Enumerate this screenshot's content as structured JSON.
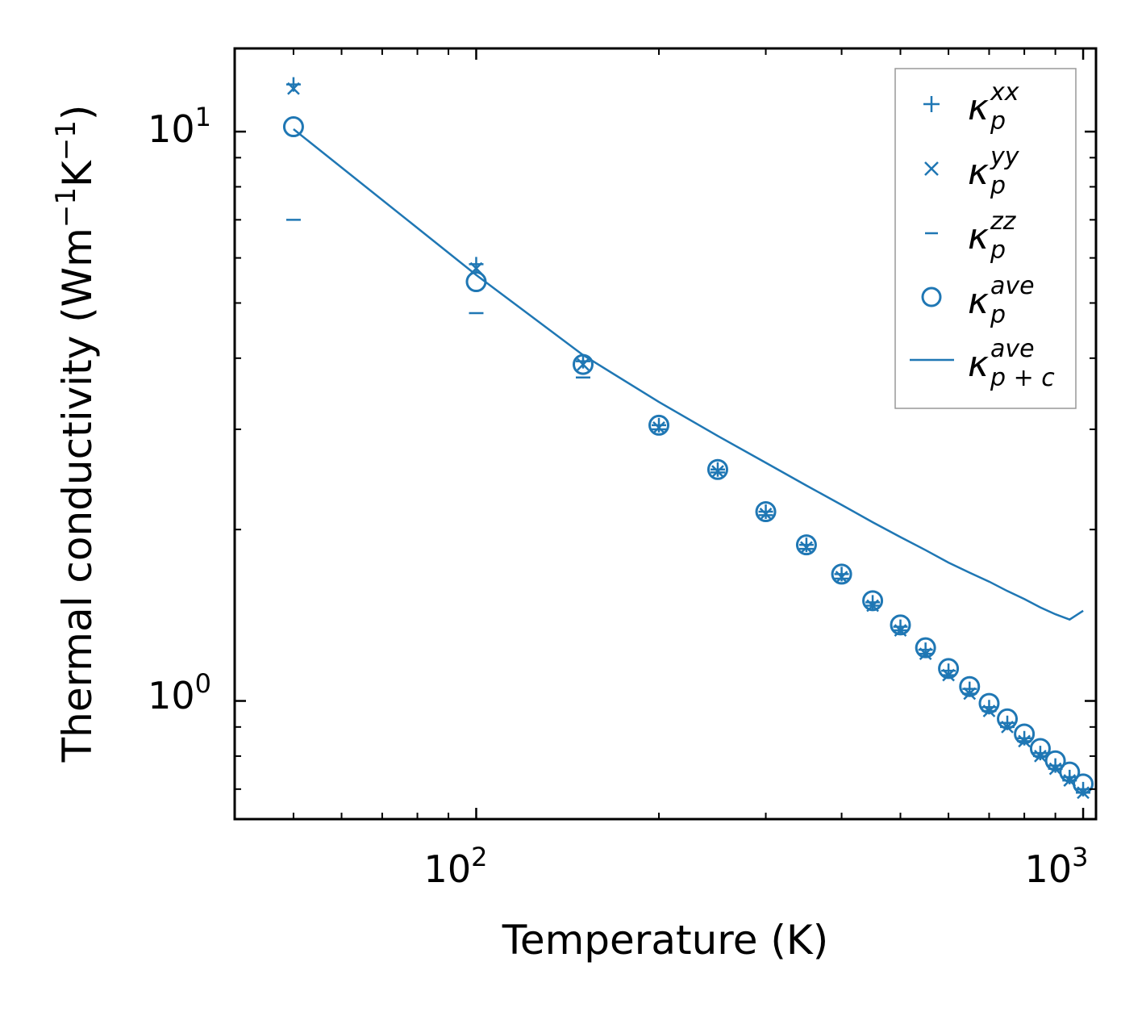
{
  "chart_data": {
    "type": "scatter",
    "xscale": "log",
    "yscale": "log",
    "xlabel": "Temperature (K)",
    "ylabel_main": "Thermal conductivity (Wm",
    "ylabel_sup1": "−1",
    "ylabel_mid": "K",
    "ylabel_sup2": "−1",
    "ylabel_end": ")",
    "xlim": [
      40,
      1050
    ],
    "ylim": [
      0.62,
      14
    ],
    "xticks": [
      {
        "value": 100,
        "base": "10",
        "exp": "2"
      },
      {
        "value": 1000,
        "base": "10",
        "exp": "3"
      }
    ],
    "yticks": [
      {
        "value": 1,
        "base": "10",
        "exp": "0"
      },
      {
        "value": 10,
        "base": "10",
        "exp": "1"
      }
    ],
    "series": [
      {
        "name": "kappa_p_xx",
        "marker": "plus",
        "legend": {
          "base": "κ",
          "sup": "xx",
          "sub": "p"
        },
        "x": [
          50,
          100,
          150,
          200,
          250,
          300,
          350,
          400,
          450,
          500,
          550,
          600,
          650,
          700,
          750,
          800,
          850,
          900,
          950,
          1000
        ],
        "y": [
          12.1,
          5.85,
          3.95,
          3.05,
          2.55,
          2.15,
          1.88,
          1.67,
          1.49,
          1.35,
          1.23,
          1.13,
          1.05,
          0.975,
          0.915,
          0.86,
          0.81,
          0.77,
          0.735,
          0.7
        ]
      },
      {
        "name": "kappa_p_yy",
        "marker": "x",
        "legend": {
          "base": "κ",
          "sup": "yy",
          "sub": "p"
        },
        "x": [
          50,
          100,
          150,
          200,
          250,
          300,
          350,
          400,
          450,
          500,
          550,
          600,
          650,
          700,
          750,
          800,
          850,
          900,
          950,
          1000
        ],
        "y": [
          11.9,
          5.75,
          3.9,
          3.02,
          2.53,
          2.13,
          1.86,
          1.65,
          1.47,
          1.33,
          1.21,
          1.11,
          1.03,
          0.96,
          0.9,
          0.85,
          0.8,
          0.76,
          0.725,
          0.69
        ]
      },
      {
        "name": "kappa_p_zz",
        "marker": "hline",
        "legend": {
          "base": "κ",
          "sup": "zz",
          "sub": "p"
        },
        "x": [
          50,
          100,
          150,
          200,
          250,
          300,
          350,
          400,
          450,
          500,
          550,
          600,
          650,
          700,
          750,
          800,
          850,
          900,
          950,
          1000
        ],
        "y": [
          7.0,
          4.8,
          3.7,
          3.0,
          2.52,
          2.12,
          1.85,
          1.64,
          1.47,
          1.33,
          1.21,
          1.11,
          1.03,
          0.96,
          0.9,
          0.85,
          0.8,
          0.76,
          0.725,
          0.69
        ]
      },
      {
        "name": "kappa_p_ave",
        "marker": "circle",
        "legend": {
          "base": "κ",
          "sup": "ave",
          "sub": "p"
        },
        "x": [
          50,
          100,
          150,
          200,
          250,
          300,
          350,
          400,
          450,
          500,
          550,
          600,
          650,
          700,
          750,
          800,
          850,
          900,
          950,
          1000
        ],
        "y": [
          10.2,
          5.45,
          3.9,
          3.05,
          2.55,
          2.15,
          1.88,
          1.67,
          1.5,
          1.36,
          1.24,
          1.14,
          1.06,
          0.99,
          0.93,
          0.875,
          0.825,
          0.785,
          0.75,
          0.715
        ]
      },
      {
        "name": "kappa_pc_ave",
        "marker": "line",
        "legend": {
          "base": "κ",
          "sup": "ave",
          "sub": "p + c"
        },
        "x": [
          50,
          100,
          150,
          200,
          250,
          300,
          350,
          400,
          450,
          500,
          550,
          600,
          650,
          700,
          750,
          800,
          850,
          900,
          950,
          1000
        ],
        "y": [
          10.1,
          5.6,
          4.05,
          3.35,
          2.92,
          2.62,
          2.39,
          2.21,
          2.06,
          1.94,
          1.84,
          1.75,
          1.68,
          1.62,
          1.56,
          1.51,
          1.46,
          1.42,
          1.39,
          1.44
        ]
      }
    ],
    "color": "#1f77b4",
    "legend_position": "top-right"
  }
}
